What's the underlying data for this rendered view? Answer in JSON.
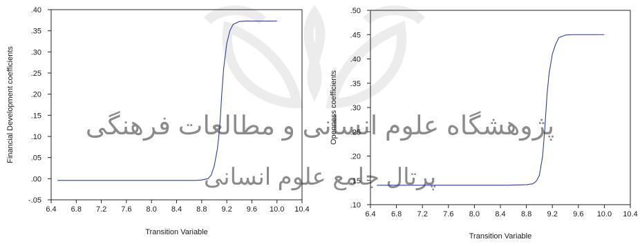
{
  "watermark": {
    "color": "#c9c9c9",
    "texts": [
      "پژوهشگاه علوم انسانی و مطالعات فرهنگی",
      "پرتال جامع علوم انسانی"
    ]
  },
  "chart_data": [
    {
      "type": "line",
      "title": "",
      "xlabel": "Transition Variable",
      "ylabel": "Financial Development coefficients",
      "xlim": [
        6.4,
        10.4
      ],
      "ylim": [
        -0.05,
        0.4
      ],
      "xticks": [
        6.4,
        6.8,
        7.2,
        7.6,
        8.0,
        8.4,
        8.8,
        9.2,
        9.6,
        10.0,
        10.4
      ],
      "xtick_labels": [
        "6.4",
        "6.8",
        "7.2",
        "7.6",
        "8.0",
        "8.4",
        "8.8",
        "9.2",
        "9.6",
        "10.0",
        "10.4"
      ],
      "yticks": [
        -0.05,
        0.0,
        0.05,
        0.1,
        0.15,
        0.2,
        0.25,
        0.3,
        0.35,
        0.4
      ],
      "ytick_labels": [
        "-.05",
        ".00",
        ".05",
        ".10",
        ".15",
        ".20",
        ".25",
        ".30",
        ".35",
        ".40"
      ],
      "grid": false,
      "line_color": "#2b3f95",
      "series": [
        {
          "x": [
            6.5,
            7.0,
            7.5,
            8.0,
            8.5,
            8.7,
            8.8,
            8.9,
            8.95,
            9.0,
            9.05,
            9.08,
            9.1,
            9.12,
            9.15,
            9.2,
            9.25,
            9.3,
            9.4,
            9.5,
            9.6,
            9.8,
            10.0
          ],
          "y": [
            -0.004,
            -0.004,
            -0.004,
            -0.004,
            -0.004,
            -0.004,
            -0.003,
            0.0,
            0.008,
            0.03,
            0.07,
            0.11,
            0.15,
            0.2,
            0.26,
            0.32,
            0.35,
            0.365,
            0.372,
            0.373,
            0.373,
            0.373,
            0.373
          ]
        }
      ]
    },
    {
      "type": "line",
      "title": "",
      "xlabel": "Transition Variable",
      "ylabel": "Openness coefficients",
      "xlim": [
        6.4,
        10.4
      ],
      "ylim": [
        0.1,
        0.5
      ],
      "xticks": [
        6.4,
        6.8,
        7.2,
        7.6,
        8.0,
        8.4,
        8.8,
        9.2,
        9.6,
        10.0,
        10.4
      ],
      "xtick_labels": [
        "6.4",
        "6.8",
        "7.2",
        "7.6",
        "8.0",
        "8.4",
        "8.8",
        "9.2",
        "9.6",
        "10.0",
        "10.4"
      ],
      "yticks": [
        0.1,
        0.15,
        0.2,
        0.25,
        0.3,
        0.35,
        0.4,
        0.45,
        0.5
      ],
      "ytick_labels": [
        ".10",
        ".15",
        ".20",
        ".25",
        ".30",
        ".35",
        ".40",
        ".45",
        ".50"
      ],
      "grid": false,
      "line_color": "#2b3f95",
      "series": [
        {
          "x": [
            6.5,
            7.0,
            7.5,
            8.0,
            8.5,
            8.8,
            8.9,
            8.95,
            9.0,
            9.05,
            9.08,
            9.1,
            9.12,
            9.15,
            9.2,
            9.25,
            9.3,
            9.4,
            9.5,
            9.6,
            9.8,
            10.0
          ],
          "y": [
            0.14,
            0.14,
            0.14,
            0.14,
            0.14,
            0.141,
            0.143,
            0.148,
            0.16,
            0.2,
            0.25,
            0.29,
            0.33,
            0.37,
            0.41,
            0.43,
            0.444,
            0.449,
            0.45,
            0.45,
            0.45,
            0.45
          ]
        }
      ]
    }
  ]
}
